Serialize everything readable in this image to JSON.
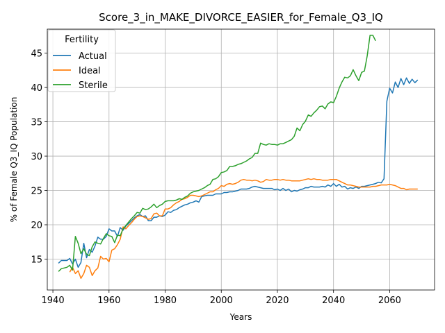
{
  "chart_data": {
    "type": "line",
    "title": "Score_3_in_MAKE_DIVORCE_EASIER_for_Female_Q3_IQ",
    "xlabel": "Years",
    "ylabel": "% of Female Q3_IQ Population",
    "xlim": [
      1938,
      2076
    ],
    "ylim": [
      10.5,
      48.5
    ],
    "xticks": [
      1940,
      1960,
      1980,
      2000,
      2020,
      2040,
      2060
    ],
    "yticks": [
      15,
      20,
      25,
      30,
      35,
      40,
      45
    ],
    "grid": true,
    "legend": {
      "title": "Fertility",
      "placement": "upper left"
    },
    "series": [
      {
        "name": "Actual",
        "color": "#1f77b4",
        "x": [
          1942,
          1943,
          1944,
          1945,
          1946,
          1947,
          1948,
          1949,
          1950,
          1951,
          1952,
          1953,
          1954,
          1955,
          1956,
          1957,
          1958,
          1959,
          1960,
          1961,
          1962,
          1963,
          1964,
          1965,
          1966,
          1967,
          1968,
          1969,
          1970,
          1971,
          1972,
          1973,
          1974,
          1975,
          1976,
          1977,
          1978,
          1979,
          1980,
          1981,
          1982,
          1983,
          1984,
          1985,
          1986,
          1987,
          1988,
          1989,
          1990,
          1991,
          1992,
          1993,
          1994,
          1995,
          1996,
          1997,
          1998,
          1999,
          2000,
          2001,
          2002,
          2003,
          2004,
          2005,
          2006,
          2007,
          2008,
          2009,
          2010,
          2011,
          2012,
          2013,
          2014,
          2015,
          2016,
          2017,
          2018,
          2019,
          2020,
          2021,
          2022,
          2023,
          2024,
          2025,
          2026,
          2027,
          2028,
          2029,
          2030,
          2031,
          2032,
          2033,
          2034,
          2035,
          2036,
          2037,
          2038,
          2039,
          2040,
          2041,
          2042,
          2043,
          2044,
          2045,
          2046,
          2047,
          2048,
          2049,
          2050,
          2051,
          2052,
          2053,
          2054,
          2055,
          2056,
          2057,
          2058,
          2059,
          2060,
          2061,
          2062,
          2063,
          2064,
          2065,
          2066,
          2067,
          2068,
          2069,
          2070
        ],
        "y": [
          14.4,
          14.8,
          14.8,
          14.8,
          15.1,
          14.3,
          15.0,
          13.8,
          14.5,
          17.3,
          15.2,
          16.4,
          16.0,
          16.9,
          18.2,
          17.9,
          17.9,
          18.3,
          19.4,
          19.1,
          19.1,
          18.3,
          19.6,
          19.2,
          19.8,
          20.2,
          20.6,
          21.0,
          21.3,
          21.5,
          21.2,
          21.3,
          20.6,
          20.6,
          21.1,
          21.1,
          21.3,
          21.2,
          21.4,
          21.9,
          21.8,
          22.1,
          22.2,
          22.5,
          22.7,
          22.9,
          23.0,
          23.2,
          23.3,
          23.5,
          23.3,
          24.1,
          24.2,
          24.3,
          24.3,
          24.3,
          24.5,
          24.5,
          24.5,
          24.7,
          24.7,
          24.8,
          24.8,
          24.9,
          25.0,
          25.2,
          25.2,
          25.2,
          25.3,
          25.5,
          25.6,
          25.5,
          25.4,
          25.3,
          25.3,
          25.3,
          25.3,
          25.1,
          25.2,
          25.0,
          25.3,
          25.0,
          25.2,
          24.8,
          25.0,
          24.9,
          25.1,
          25.2,
          25.4,
          25.4,
          25.6,
          25.5,
          25.5,
          25.5,
          25.6,
          25.5,
          25.8,
          25.6,
          26.0,
          25.6,
          25.9,
          25.5,
          25.6,
          25.2,
          25.4,
          25.3,
          25.5,
          25.3,
          25.6,
          25.6,
          25.7,
          25.8,
          25.9,
          26.0,
          26.2,
          26.1,
          26.7,
          38.0,
          39.9,
          39.2,
          40.8,
          40.0,
          41.3,
          40.4,
          41.4,
          40.6,
          41.2,
          40.7,
          41.1
        ]
      },
      {
        "name": "Ideal",
        "color": "#ff7f0e",
        "x": [
          1946,
          1947,
          1948,
          1949,
          1950,
          1951,
          1952,
          1953,
          1954,
          1955,
          1956,
          1957,
          1958,
          1959,
          1960,
          1961,
          1962,
          1963,
          1964,
          1965,
          1966,
          1967,
          1968,
          1969,
          1970,
          1971,
          1972,
          1973,
          1974,
          1975,
          1976,
          1977,
          1978,
          1979,
          1980,
          1981,
          1982,
          1983,
          1984,
          1985,
          1986,
          1987,
          1988,
          1989,
          1990,
          1991,
          1992,
          1993,
          1994,
          1995,
          1996,
          1997,
          1998,
          1999,
          2000,
          2001,
          2002,
          2003,
          2004,
          2005,
          2006,
          2007,
          2008,
          2009,
          2010,
          2011,
          2012,
          2013,
          2014,
          2015,
          2016,
          2017,
          2018,
          2019,
          2020,
          2021,
          2022,
          2023,
          2024,
          2025,
          2026,
          2027,
          2028,
          2029,
          2030,
          2031,
          2032,
          2033,
          2034,
          2035,
          2036,
          2037,
          2038,
          2039,
          2040,
          2041,
          2042,
          2043,
          2044,
          2045,
          2046,
          2047,
          2048,
          2049,
          2050,
          2051,
          2052,
          2053,
          2054,
          2055,
          2056,
          2057,
          2058,
          2059,
          2060,
          2061,
          2062,
          2063,
          2064,
          2065,
          2066,
          2067,
          2068,
          2069,
          2070
        ],
        "y": [
          13.1,
          13.8,
          12.9,
          13.3,
          12.2,
          12.9,
          14.1,
          13.8,
          12.6,
          13.3,
          13.7,
          15.4,
          15.0,
          15.1,
          14.6,
          16.3,
          16.5,
          17.1,
          17.9,
          19.7,
          19.4,
          19.9,
          20.3,
          20.8,
          21.2,
          21.3,
          21.2,
          21.0,
          20.8,
          20.9,
          21.6,
          21.7,
          21.3,
          21.3,
          22.3,
          22.3,
          22.5,
          22.9,
          23.2,
          23.4,
          23.7,
          23.8,
          24.0,
          24.3,
          24.3,
          24.2,
          24.1,
          24.2,
          24.4,
          24.6,
          24.8,
          24.8,
          25.1,
          25.3,
          25.7,
          25.6,
          25.9,
          26.0,
          25.9,
          26.0,
          26.2,
          26.5,
          26.6,
          26.5,
          26.5,
          26.4,
          26.5,
          26.4,
          26.2,
          26.3,
          26.6,
          26.5,
          26.5,
          26.6,
          26.6,
          26.5,
          26.6,
          26.5,
          26.5,
          26.4,
          26.4,
          26.4,
          26.4,
          26.5,
          26.6,
          26.7,
          26.6,
          26.7,
          26.6,
          26.6,
          26.5,
          26.5,
          26.5,
          26.6,
          26.6,
          26.6,
          26.4,
          26.2,
          26.0,
          25.8,
          25.8,
          25.7,
          25.6,
          25.5,
          25.5,
          25.5,
          25.5,
          25.5,
          25.6,
          25.6,
          25.7,
          25.8,
          25.8,
          25.8,
          25.9,
          25.8,
          25.7,
          25.5,
          25.3,
          25.3,
          25.1,
          25.2,
          25.2,
          25.2,
          25.2
        ]
      },
      {
        "name": "Sterile",
        "color": "#2ca02c",
        "x": [
          1942,
          1943,
          1944,
          1945,
          1946,
          1947,
          1948,
          1949,
          1950,
          1951,
          1952,
          1953,
          1954,
          1955,
          1956,
          1957,
          1958,
          1959,
          1960,
          1961,
          1962,
          1963,
          1964,
          1965,
          1966,
          1967,
          1968,
          1969,
          1970,
          1971,
          1972,
          1973,
          1974,
          1975,
          1976,
          1977,
          1978,
          1979,
          1980,
          1981,
          1982,
          1983,
          1984,
          1985,
          1986,
          1987,
          1988,
          1989,
          1990,
          1991,
          1992,
          1993,
          1994,
          1995,
          1996,
          1997,
          1998,
          1999,
          2000,
          2001,
          2002,
          2003,
          2004,
          2005,
          2006,
          2007,
          2008,
          2009,
          2010,
          2011,
          2012,
          2013,
          2014,
          2015,
          2016,
          2017,
          2018,
          2019,
          2020,
          2021,
          2022,
          2023,
          2024,
          2025,
          2026,
          2027,
          2028,
          2029,
          2030,
          2031,
          2032,
          2033,
          2034,
          2035,
          2036,
          2037,
          2038,
          2039,
          2040,
          2041,
          2042,
          2043,
          2044,
          2045,
          2046,
          2047,
          2048,
          2049,
          2050,
          2051,
          2052,
          2053,
          2054,
          2055
        ],
        "y": [
          13.2,
          13.6,
          13.7,
          13.8,
          14.1,
          13.4,
          18.3,
          17.3,
          15.8,
          16.5,
          15.7,
          15.5,
          16.8,
          17.5,
          17.3,
          17.2,
          18.0,
          18.7,
          18.4,
          18.3,
          17.4,
          18.5,
          18.4,
          19.4,
          19.9,
          20.4,
          20.9,
          21.3,
          21.8,
          21.7,
          22.4,
          22.2,
          22.3,
          22.6,
          23.0,
          22.5,
          22.8,
          23.0,
          23.4,
          23.5,
          23.5,
          23.5,
          23.6,
          23.8,
          23.7,
          24.0,
          24.2,
          24.6,
          24.8,
          24.9,
          25.0,
          25.2,
          25.4,
          25.7,
          25.9,
          26.6,
          26.7,
          27.0,
          27.6,
          27.7,
          27.9,
          28.5,
          28.5,
          28.6,
          28.8,
          28.9,
          29.1,
          29.3,
          29.6,
          29.8,
          30.4,
          30.4,
          31.9,
          31.7,
          31.6,
          31.8,
          31.7,
          31.7,
          31.6,
          31.8,
          31.8,
          32.0,
          32.2,
          32.4,
          32.9,
          34.1,
          33.7,
          34.6,
          35.1,
          36.0,
          35.8,
          36.3,
          36.7,
          37.2,
          37.3,
          36.9,
          37.6,
          37.9,
          37.8,
          38.7,
          39.9,
          40.8,
          41.5,
          41.4,
          41.7,
          42.6,
          41.7,
          41.0,
          42.2,
          42.4,
          44.6,
          47.6,
          47.6,
          46.8
        ]
      }
    ]
  }
}
